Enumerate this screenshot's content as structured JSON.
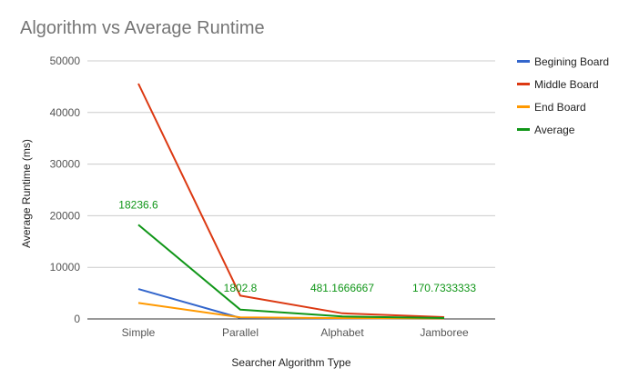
{
  "chart_data": {
    "type": "line",
    "title": "Algorithm vs Average Runtime",
    "xlabel": "Searcher Algorithm Type",
    "ylabel": "Average Runtime (ms)",
    "categories": [
      "Simple",
      "Parallel",
      "Alphabet",
      "Jamboree"
    ],
    "ylim": [
      0,
      50000
    ],
    "yticks": [
      "0",
      "10000",
      "20000",
      "30000",
      "40000",
      "50000"
    ],
    "grid": true,
    "legend_position": "right",
    "series": [
      {
        "name": "Begining Board",
        "color": "#3366cc",
        "values": [
          5800,
          200,
          100,
          60
        ]
      },
      {
        "name": "Middle Board",
        "color": "#dc3912",
        "values": [
          45600,
          4500,
          1100,
          350
        ]
      },
      {
        "name": "End Board",
        "color": "#ff9900",
        "values": [
          3100,
          300,
          150,
          80
        ]
      },
      {
        "name": "Average",
        "color": "#109618",
        "values": [
          18236.6,
          1802.8,
          481.1666667,
          170.7333333
        ],
        "data_labels": [
          "18236.6",
          "1802.8",
          "481.1666667",
          "170.7333333"
        ]
      }
    ]
  }
}
